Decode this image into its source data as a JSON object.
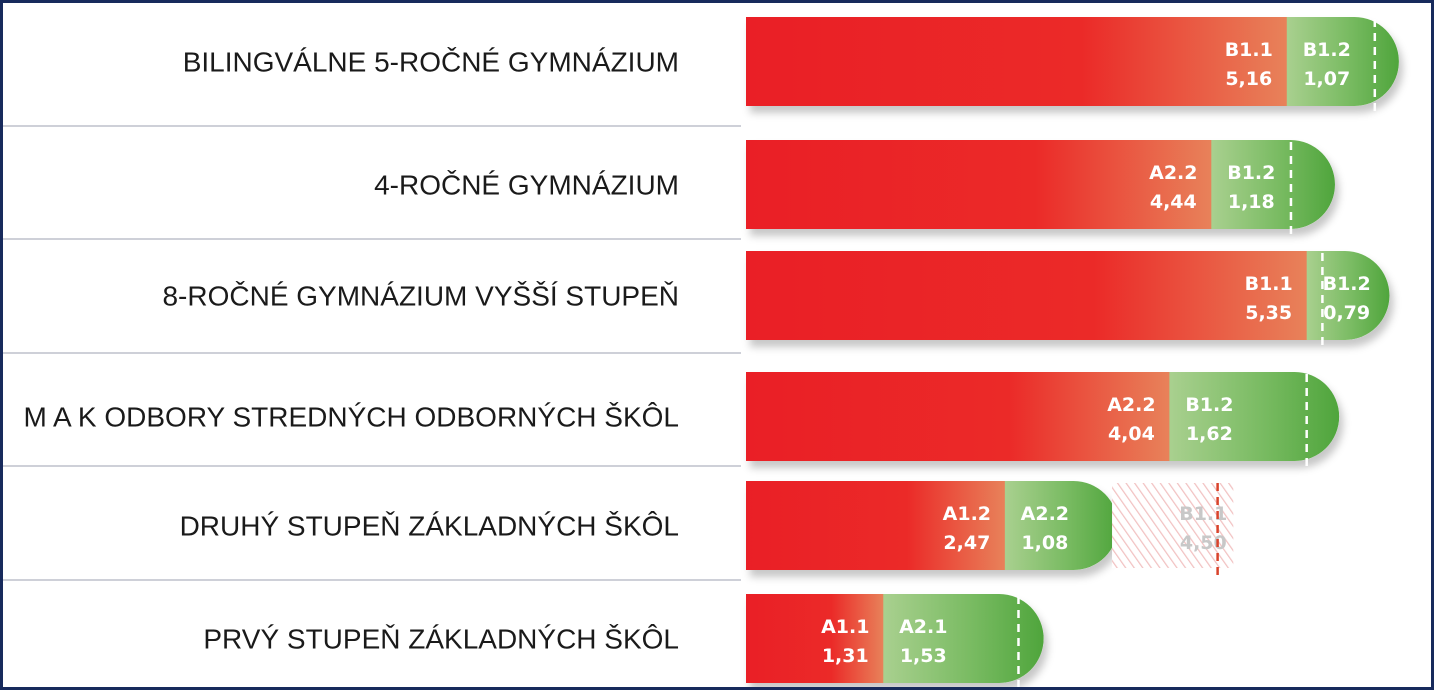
{
  "chart_data": {
    "type": "bar",
    "orientation": "horizontal",
    "stacked": true,
    "categories": [
      "BILINGVÁLNE 5-ROČNÉ GYMNÁZIUM",
      "4-ROČNÉ GYMNÁZIUM",
      "8-ROČNÉ GYMNÁZIUM VYŠŠÍ STUPEŇ",
      "M A K ODBORY STREDNÝCH ODBORNÝCH ŠKÔL",
      "DRUHÝ STUPEŇ ZÁKLADNÝCH ŠKÔL",
      "PRVÝ STUPEŇ ZÁKLADNÝCH ŠKÔL"
    ],
    "rows": [
      {
        "segments": [
          {
            "level": "B1.1",
            "value": "5,16",
            "v": 5.16,
            "kind": "red"
          },
          {
            "level": "B1.2",
            "value": "1,07",
            "v": 1.07,
            "kind": "green"
          }
        ],
        "dashed_at": 6.0
      },
      {
        "segments": [
          {
            "level": "A2.2",
            "value": "4,44",
            "v": 4.44,
            "kind": "red"
          },
          {
            "level": "B1.2",
            "value": "1,18",
            "v": 1.18,
            "kind": "green"
          }
        ],
        "dashed_at": 5.2
      },
      {
        "segments": [
          {
            "level": "B1.1",
            "value": "5,35",
            "v": 5.35,
            "kind": "red"
          },
          {
            "level": "B1.2",
            "value": "0,79",
            "v": 0.79,
            "kind": "green"
          }
        ],
        "dashed_at": 5.5
      },
      {
        "segments": [
          {
            "level": "A2.2",
            "value": "4,04",
            "v": 4.04,
            "kind": "red"
          },
          {
            "level": "B1.2",
            "value": "1,62",
            "v": 1.62,
            "kind": "green"
          }
        ],
        "dashed_at": 5.35
      },
      {
        "segments": [
          {
            "level": "A1.2",
            "value": "2,47",
            "v": 2.47,
            "kind": "red"
          },
          {
            "level": "A2.2",
            "value": "1,08",
            "v": 1.08,
            "kind": "green"
          },
          {
            "level": "B1.1",
            "value": "4,50",
            "v": 1.1,
            "kind": "hatched"
          }
        ],
        "dashed_at": 4.5
      },
      {
        "segments": [
          {
            "level": "A1.1",
            "value": "1,31",
            "v": 1.31,
            "kind": "red"
          },
          {
            "level": "A2.1",
            "value": "1,53",
            "v": 1.53,
            "kind": "green"
          }
        ],
        "dashed_at": 2.6
      }
    ],
    "colors": {
      "red": "#ea1f26",
      "red_fade": "#e8825a",
      "green_light": "#a9d08f",
      "green": "#4fa53c",
      "faded_text": "#c8c8c8",
      "dashed_red": "#d9432b",
      "frame": "#172a5c",
      "separator": "#b0b4c0"
    }
  }
}
